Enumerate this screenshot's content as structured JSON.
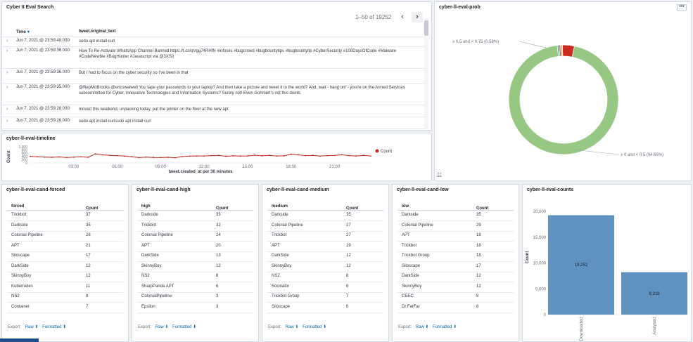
{
  "search": {
    "title": "Cyber II Eval Search",
    "pagination": "1–50 of 19252",
    "prev": "‹",
    "next": "›",
    "columns": [
      "Time",
      "tweet.original_text"
    ],
    "rows": [
      {
        "time": "Jun 7, 2021 @ 23:59:48.000",
        "text": "sudo apt install curl"
      },
      {
        "time": "Jun 7, 2021 @ 23:59:36.000",
        "text": "How To Re-Activate WhatsApp Channel Banned https://t.co/qVgg74RHfN #infosec #bugcrowd #bugbountytips #bugbountytip #CyberSecurity #100DaysOfCode #Malware #CodeNewbie #BugHunter #Javascript via @3XS0"
      },
      {
        "time": "Jun 7, 2021 @ 23:59:36.000",
        "text": "But I had to focus on the cyber security so I've been in that"
      },
      {
        "time": "Jun 7, 2021 @ 23:59:35.000",
        "text": "@RepMoBrooks @ericswalwell You tape your passwords to your laptop? And then take a picture and tweet it to the world? And, wait - hang on! - you're on the Armed Services subcommittee for Cyber, Innovative Technologies and Information Systems? Surely not! Even Gohmert's not this dumb."
      },
      {
        "time": "Jun 7, 2021 @ 23:59:28.000",
        "text": "moved this weekend, unpacking today, put the printer on the floor at the new apt"
      },
      {
        "time": "Jun 7, 2021 @ 23:59:26.000",
        "text": "sudo apt install curlsudo apt install curl"
      }
    ]
  },
  "prob": {
    "title": "cyber-ll-eval-prob",
    "menu": "•••",
    "label_top": "≥ 0.5 and < 0.75 (0.58%)",
    "label_bottom": "≥ 0 and < 0.5 (94.65%)",
    "legend_toggle": "☷",
    "colors": {
      "main": "#97c883",
      "red": "#cc2b23",
      "orange": "#f0b178",
      "green2": "#54b399"
    }
  },
  "timeline": {
    "title": "cyber-ll-eval-timeline",
    "ylabel": "Count",
    "xlabel": "tweet.created_at per 30 minutes",
    "legend": "Count",
    "yticks": [
      "1,000",
      "800",
      "600",
      "400",
      "200",
      "0"
    ],
    "xticks": [
      "03:00",
      "06:00",
      "09:00",
      "12:00",
      "15:00",
      "18:00",
      "21:00"
    ]
  },
  "chart_data": [
    {
      "type": "line",
      "ylabel": "Count",
      "xlabel": "tweet.created_at per 30 minutes",
      "x": [
        "00:00",
        "00:30",
        "01:00",
        "01:30",
        "02:00",
        "02:30",
        "03:00",
        "03:30",
        "04:00",
        "04:30",
        "05:00",
        "05:30",
        "06:00",
        "06:30",
        "07:00",
        "07:30",
        "08:00",
        "08:30",
        "09:00",
        "09:30",
        "10:00",
        "10:30",
        "11:00",
        "11:30",
        "12:00",
        "12:30",
        "13:00",
        "13:30",
        "14:00",
        "14:30",
        "15:00",
        "15:30",
        "16:00",
        "16:30",
        "17:00",
        "17:30",
        "18:00",
        "18:30",
        "19:00",
        "19:30",
        "20:00",
        "20:30",
        "21:00",
        "21:30",
        "22:00",
        "22:30",
        "23:00",
        "23:30"
      ],
      "series": [
        {
          "name": "Count",
          "values": [
            400,
            380,
            360,
            350,
            370,
            340,
            360,
            380,
            350,
            560,
            500,
            470,
            450,
            420,
            380,
            330,
            360,
            340,
            330,
            350,
            320,
            390,
            420,
            430,
            430,
            450,
            470,
            410,
            440,
            420,
            430,
            480,
            440,
            470,
            430,
            440,
            540,
            500,
            450,
            470,
            420,
            450,
            460,
            510,
            450,
            430,
            470,
            430
          ]
        }
      ],
      "ylim": [
        0,
        1000
      ],
      "legend": "top-right"
    },
    {
      "type": "pie",
      "labels": [
        "≥ 0 and < 0.5",
        "≥ 0.5 and < 0.75"
      ],
      "values": [
        94.65,
        0.58
      ],
      "legend": "left"
    },
    {
      "type": "bar",
      "categories": [
        "Downloaded",
        "Analysed"
      ],
      "values": [
        19252,
        8219
      ],
      "ylabel": "Count",
      "ylim": [
        0,
        20000
      ],
      "data_labels": [
        "19,252",
        "8,219"
      ]
    }
  ],
  "cand_forced": {
    "title": "cyber-ll-eval-cand-forced",
    "col1": "forced",
    "col2": "Count",
    "rows": [
      [
        "Trickbot",
        "37"
      ],
      [
        "Darkside",
        "35"
      ],
      [
        "Colonial Pipeline",
        "28"
      ],
      [
        "APT",
        "21"
      ],
      [
        "Siloscape",
        "17"
      ],
      [
        "DarkSide",
        "12"
      ],
      [
        "SkinnyBoy",
        "12"
      ],
      [
        "Kubernetes",
        "11"
      ],
      [
        "NS2",
        "8"
      ],
      [
        "Container",
        "7"
      ]
    ]
  },
  "cand_high": {
    "title": "cyber-ll-eval-cand-high",
    "col1": "high",
    "col2": "Count",
    "rows": [
      [
        "Darkside",
        "35"
      ],
      [
        "Trickbot",
        "32"
      ],
      [
        "Colonial Pipeline",
        "24"
      ],
      [
        "APT",
        "20"
      ],
      [
        "DarkSide",
        "13"
      ],
      [
        "SkinnyBoy",
        "12"
      ],
      [
        "NS2",
        "8"
      ],
      [
        "SharpPanda APT",
        "6"
      ],
      [
        "ColonialPipeline",
        "3"
      ],
      [
        "Epsilon",
        "3"
      ]
    ]
  },
  "cand_medium": {
    "title": "cyber-ll-eval-cand-medium",
    "col1": "medium",
    "col2": "Count",
    "rows": [
      [
        "Darkside",
        "35"
      ],
      [
        "Colonial Pipeline",
        "27"
      ],
      [
        "Trickbot",
        "27"
      ],
      [
        "APT",
        "19"
      ],
      [
        "DarkSide",
        "12"
      ],
      [
        "SkinnyBoy",
        "12"
      ],
      [
        "NS2",
        "8"
      ],
      [
        "Socinator",
        "8"
      ],
      [
        "Trickbot Group",
        "7"
      ],
      [
        "Siloscape",
        "6"
      ]
    ]
  },
  "cand_low": {
    "title": "cyber-ll-eval-cand-low",
    "col1": "low",
    "col2": "Count",
    "rows": [
      [
        "Darkside",
        "35"
      ],
      [
        "Colonial Pipeline",
        "29"
      ],
      [
        "APT",
        "18"
      ],
      [
        "Trickbot",
        "18"
      ],
      [
        "Trickbot Group",
        "18"
      ],
      [
        "Siloscape",
        "17"
      ],
      [
        "DarkSide",
        "12"
      ],
      [
        "SkinnyBoy",
        "12"
      ],
      [
        "CEEC",
        "8"
      ],
      [
        "Dr.FarFar",
        "8"
      ]
    ]
  },
  "export": {
    "label": "Export:",
    "raw": "Raw",
    "formatted": "Formatted",
    "download_icon": "⬇"
  },
  "counts": {
    "title": "cyber-ll-eval-counts",
    "ylabel": "Count",
    "yticks": [
      "20,000",
      "15,000",
      "10,000",
      "5,000",
      "0"
    ],
    "categories": [
      "Downloaded",
      "Analysed"
    ],
    "data_labels": [
      "19,252",
      "8,219"
    ],
    "bar_color": "#6092c0"
  }
}
